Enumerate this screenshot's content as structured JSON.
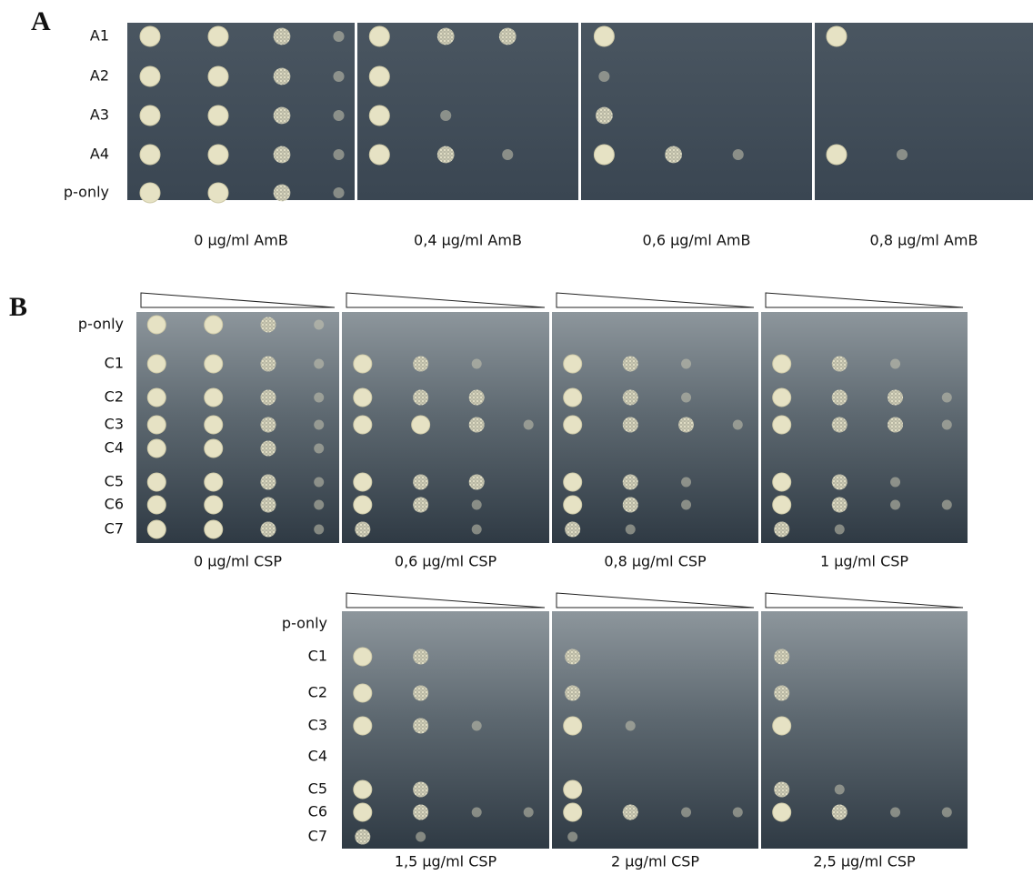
{
  "panel_a": {
    "label": "A",
    "rows": [
      "A1",
      "A2",
      "A3",
      "A4",
      "p-only"
    ],
    "plates": [
      "0 μg/ml AmB",
      "0,4 μg/ml AmB",
      "0,6 μg/ml AmB",
      "0,8 μg/ml AmB"
    ]
  },
  "panel_b": {
    "label": "B",
    "top": {
      "rows": [
        "p-only",
        "C1",
        "C2",
        "C3",
        "C4",
        "C5",
        "C6",
        "C7"
      ],
      "plates": [
        "0 μg/ml CSP",
        "0,6 μg/ml CSP",
        "0,8 μg/ml CSP",
        "1 μg/ml CSP"
      ]
    },
    "bottom": {
      "rows": [
        "p-only",
        "C1",
        "C2",
        "C3",
        "C4",
        "C5",
        "C6",
        "C7"
      ],
      "plates": [
        "1,5 μg/ml CSP",
        "2 μg/ml CSP",
        "2,5 μg/ml CSP"
      ]
    }
  }
}
